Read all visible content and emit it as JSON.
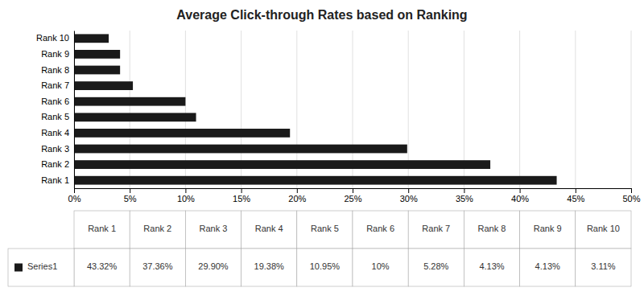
{
  "chart_data": {
    "type": "bar",
    "orientation": "horizontal",
    "title": "Average Click-through Rates based on Ranking",
    "categories": [
      "Rank 1",
      "Rank 2",
      "Rank 3",
      "Rank 4",
      "Rank 5",
      "Rank 6",
      "Rank 7",
      "Rank 8",
      "Rank 9",
      "Rank 10"
    ],
    "series": [
      {
        "name": "Series1",
        "color": "#1a1a1a",
        "values": [
          43.32,
          37.36,
          29.9,
          19.38,
          10.95,
          10.0,
          5.28,
          4.13,
          4.13,
          3.11
        ],
        "value_labels": [
          "43.32%",
          "37.36%",
          "29.90%",
          "19.38%",
          "10.95%",
          "10%",
          "5.28%",
          "4.13%",
          "4.13%",
          "3.11%"
        ]
      }
    ],
    "xlim": [
      0,
      50
    ],
    "xticks": [
      {
        "value": 0,
        "label": "0%"
      },
      {
        "value": 5,
        "label": "5%"
      },
      {
        "value": 10,
        "label": "10%"
      },
      {
        "value": 15,
        "label": "15%"
      },
      {
        "value": 20,
        "label": "20%"
      },
      {
        "value": 25,
        "label": "25%"
      },
      {
        "value": 30,
        "label": "30%"
      },
      {
        "value": 35,
        "label": "35%"
      },
      {
        "value": 40,
        "label": "40%"
      },
      {
        "value": 45,
        "label": "45%"
      },
      {
        "value": 50,
        "label": "50%"
      }
    ],
    "grid": true
  }
}
